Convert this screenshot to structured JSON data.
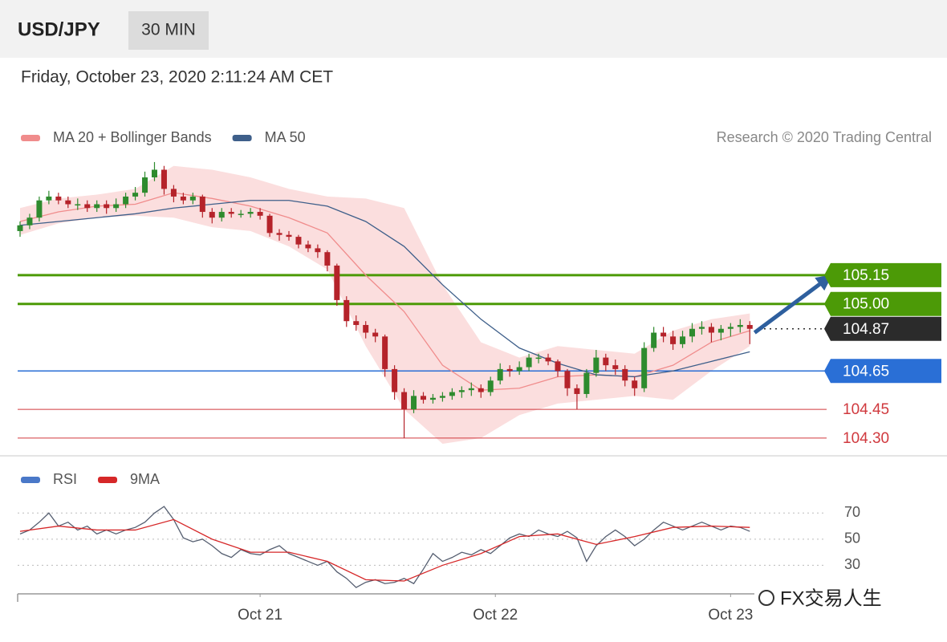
{
  "header": {
    "symbol": "USD/JPY",
    "interval": "30 MIN",
    "timestamp": "Friday, October 23, 2020 2:11:24 AM CET",
    "watermark": "FX交易人生"
  },
  "chart_data": [
    {
      "type": "candlestick",
      "credit": "Research © 2020 Trading Central",
      "up_color": "#2e8b2e",
      "down_color": "#b5232a",
      "xlim": [
        -0.25,
        84
      ],
      "ylim": [
        104.22,
        105.79
      ],
      "open": [
        105.38,
        105.41,
        105.45,
        105.54,
        105.56,
        105.54,
        105.52,
        105.52,
        105.5,
        105.52,
        105.5,
        105.52,
        105.56,
        105.58,
        105.66,
        105.7,
        105.6,
        105.56,
        105.54,
        105.56,
        105.48,
        105.45,
        105.48,
        105.47,
        105.47,
        105.48,
        105.46,
        105.37,
        105.36,
        105.35,
        105.31,
        105.29,
        105.27,
        105.2,
        105.02,
        104.91,
        104.89,
        104.85,
        104.83,
        104.66,
        104.54,
        104.45,
        104.52,
        104.5,
        104.51,
        104.52,
        104.54,
        104.55,
        104.56,
        104.54,
        104.6,
        104.66,
        104.65,
        104.67,
        104.72,
        104.72,
        104.7,
        104.65,
        104.56,
        104.53,
        104.64,
        104.72,
        104.68,
        104.66,
        104.6,
        104.56,
        104.77,
        104.85,
        104.83,
        104.79,
        104.83,
        104.87,
        104.88,
        104.85,
        104.87,
        104.88,
        104.89
      ],
      "high": [
        105.43,
        105.47,
        105.56,
        105.59,
        105.58,
        105.56,
        105.55,
        105.54,
        105.54,
        105.54,
        105.55,
        105.58,
        105.61,
        105.69,
        105.74,
        105.72,
        105.62,
        105.58,
        105.58,
        105.57,
        105.5,
        105.5,
        105.5,
        105.49,
        105.5,
        105.5,
        105.47,
        105.39,
        105.38,
        105.36,
        105.33,
        105.31,
        105.28,
        105.21,
        105.04,
        104.94,
        104.91,
        104.87,
        104.84,
        104.68,
        104.56,
        104.55,
        104.54,
        104.53,
        104.54,
        104.56,
        104.57,
        104.59,
        104.58,
        104.62,
        104.69,
        104.68,
        104.7,
        104.74,
        104.74,
        104.74,
        104.71,
        104.66,
        104.58,
        104.66,
        104.76,
        104.74,
        104.71,
        104.68,
        104.62,
        104.8,
        104.88,
        104.88,
        104.86,
        104.86,
        104.9,
        104.91,
        104.9,
        104.89,
        104.9,
        104.92,
        104.91
      ],
      "low": [
        105.35,
        105.39,
        105.43,
        105.52,
        105.52,
        105.5,
        105.49,
        105.48,
        105.48,
        105.47,
        105.48,
        105.5,
        105.54,
        105.56,
        105.64,
        105.57,
        105.53,
        105.52,
        105.52,
        105.45,
        105.42,
        105.43,
        105.45,
        105.45,
        105.45,
        105.44,
        105.35,
        105.33,
        105.33,
        105.29,
        105.27,
        105.24,
        105.17,
        104.99,
        104.88,
        104.86,
        104.82,
        104.8,
        104.62,
        104.5,
        104.3,
        104.43,
        104.48,
        104.48,
        104.49,
        104.5,
        104.51,
        104.52,
        104.51,
        104.52,
        104.58,
        104.62,
        104.63,
        104.65,
        104.69,
        104.68,
        104.62,
        104.52,
        104.45,
        104.51,
        104.62,
        104.65,
        104.63,
        104.57,
        104.52,
        104.54,
        104.75,
        104.8,
        104.76,
        104.77,
        104.8,
        104.84,
        104.8,
        104.81,
        104.83,
        104.85,
        104.79
      ],
      "close": [
        105.41,
        105.45,
        105.54,
        105.56,
        105.54,
        105.52,
        105.52,
        105.5,
        105.52,
        105.5,
        105.52,
        105.56,
        105.58,
        105.66,
        105.7,
        105.6,
        105.56,
        105.54,
        105.56,
        105.48,
        105.45,
        105.48,
        105.47,
        105.47,
        105.48,
        105.46,
        105.37,
        105.36,
        105.35,
        105.31,
        105.29,
        105.27,
        105.2,
        105.02,
        104.91,
        104.89,
        104.85,
        104.83,
        104.66,
        104.54,
        104.45,
        104.52,
        104.5,
        104.51,
        104.52,
        104.54,
        104.55,
        104.56,
        104.54,
        104.6,
        104.66,
        104.65,
        104.67,
        104.72,
        104.72,
        104.7,
        104.65,
        104.56,
        104.53,
        104.64,
        104.72,
        104.68,
        104.66,
        104.6,
        104.56,
        104.77,
        104.85,
        104.83,
        104.79,
        104.83,
        104.87,
        104.88,
        104.85,
        104.87,
        104.88,
        104.89,
        104.87
      ],
      "series": [
        {
          "name": "MA 20 + Bollinger Bands",
          "color": "#f08c8c",
          "band_color": "#fbdede",
          "x": [
            0,
            4,
            8,
            12,
            16,
            20,
            24,
            28,
            32,
            36,
            40,
            44,
            48,
            52,
            56,
            60,
            64,
            68,
            72,
            76
          ],
          "values": [
            105.43,
            105.48,
            105.51,
            105.52,
            105.58,
            105.55,
            105.51,
            105.45,
            105.37,
            105.15,
            104.96,
            104.68,
            104.55,
            104.56,
            104.62,
            104.63,
            104.62,
            104.68,
            104.8,
            104.86
          ],
          "upper": [
            105.5,
            105.55,
            105.57,
            105.6,
            105.72,
            105.7,
            105.66,
            105.6,
            105.56,
            105.55,
            105.5,
            105.1,
            104.8,
            104.72,
            104.78,
            104.76,
            104.74,
            104.86,
            104.92,
            104.95
          ],
          "lower": [
            105.36,
            105.42,
            105.45,
            105.46,
            105.45,
            105.4,
            105.38,
            105.3,
            105.18,
            104.78,
            104.45,
            104.27,
            104.3,
            104.42,
            104.48,
            104.5,
            104.52,
            104.5,
            104.65,
            104.78
          ]
        },
        {
          "name": "MA 50",
          "color": "#3e5f8a",
          "x": [
            0,
            4,
            8,
            12,
            16,
            20,
            24,
            28,
            32,
            36,
            40,
            44,
            48,
            52,
            56,
            60,
            64,
            68,
            72,
            76
          ],
          "values": [
            105.41,
            105.43,
            105.45,
            105.47,
            105.5,
            105.52,
            105.54,
            105.54,
            105.51,
            105.43,
            105.3,
            105.1,
            104.92,
            104.77,
            104.69,
            104.63,
            104.62,
            104.65,
            104.7,
            104.75
          ]
        }
      ],
      "levels": {
        "values": [
          105.15,
          105.0,
          104.87,
          104.65,
          104.45,
          104.3
        ],
        "value_labels": [
          "105.15",
          "105.00",
          "104.87",
          "104.65",
          "104.45",
          "104.30"
        ],
        "colors": [
          "#4c9a07",
          "#4c9a07",
          "#2b2b2b",
          "#2a6fd6",
          "#d0393e",
          "#d0393e"
        ],
        "boxed": [
          true,
          true,
          true,
          true,
          false,
          false
        ],
        "major": [
          true,
          true,
          false,
          false,
          false,
          false
        ],
        "dotted": [
          false,
          false,
          true,
          false,
          false,
          false
        ]
      },
      "arrow": {
        "color": "#2e5f9e",
        "x": [
          76.5,
          84
        ],
        "values": [
          104.85,
          105.13
        ]
      }
    },
    {
      "type": "line",
      "xlim": [
        -0.25,
        84
      ],
      "ylim": [
        10,
        80
      ],
      "yticks": [
        30,
        50,
        70
      ],
      "xticks": [
        {
          "value": 25,
          "label": "Oct 21"
        },
        {
          "value": 49.5,
          "label": "Oct 22"
        },
        {
          "value": 74,
          "label": "Oct 23"
        }
      ],
      "series": [
        {
          "name": "RSI",
          "color": "#4a78c8",
          "line_color": "#555e70",
          "values": [
            54,
            57,
            63,
            70,
            60,
            63,
            57,
            60,
            54,
            57,
            54,
            57,
            59,
            63,
            70,
            75,
            65,
            51,
            48,
            50,
            45,
            39,
            36,
            42,
            39,
            38,
            42,
            45,
            39,
            36,
            33,
            30,
            33,
            25,
            20,
            13,
            17,
            19,
            16,
            17,
            20,
            16,
            27,
            39,
            33,
            36,
            40,
            38,
            42,
            39,
            45,
            51,
            54,
            52,
            57,
            54,
            52,
            56,
            51,
            33,
            45,
            52,
            57,
            52,
            45,
            50,
            57,
            63,
            60,
            57,
            60,
            63,
            60,
            57,
            60,
            59,
            56
          ]
        },
        {
          "name": "9MA",
          "color": "#d62728",
          "x": [
            0,
            4,
            8,
            12,
            16,
            20,
            24,
            28,
            32,
            36,
            40,
            44,
            48,
            52,
            56,
            60,
            64,
            68,
            72,
            76
          ],
          "values": [
            56,
            60,
            57,
            57,
            65,
            50,
            40,
            40,
            33,
            19,
            18,
            30,
            39,
            52,
            54,
            46,
            52,
            59,
            60,
            59
          ]
        }
      ]
    }
  ]
}
